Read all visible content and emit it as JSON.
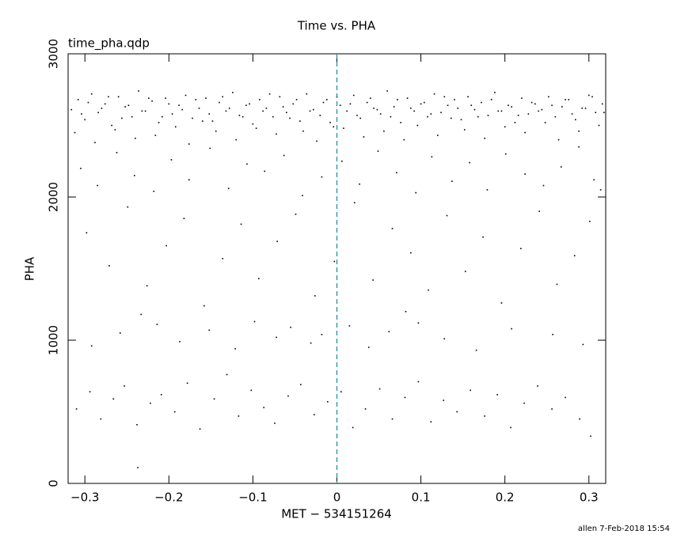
{
  "chart_data": {
    "type": "scatter",
    "title": "Time vs. PHA",
    "subtitle": "time_pha.qdp",
    "x_label": "MET − 534151264",
    "y_label": "PHA",
    "footer": "allen  7-Feb-2018 15:54",
    "color": "#000000",
    "vline": 0,
    "vline_color": "#2a8fa0",
    "xlim": [
      -0.32,
      0.32
    ],
    "ylim": [
      0,
      3000
    ],
    "xticks": [
      {
        "value": -0.3,
        "label": "−0.3"
      },
      {
        "value": -0.2,
        "label": "−0.2"
      },
      {
        "value": -0.1,
        "label": "−0.1"
      },
      0,
      0.1,
      0.2,
      0.3
    ],
    "yticks": [
      0,
      1000,
      2000,
      3000
    ],
    "x": [
      -0.316,
      -0.308,
      -0.3,
      -0.292,
      -0.284,
      -0.276,
      -0.268,
      -0.26,
      -0.252,
      -0.244,
      -0.236,
      -0.228,
      -0.22,
      -0.212,
      -0.204,
      -0.196,
      -0.188,
      -0.18,
      -0.172,
      -0.164,
      -0.156,
      -0.148,
      -0.14,
      -0.132,
      -0.124,
      -0.116,
      -0.108,
      -0.1,
      -0.092,
      -0.084,
      -0.076,
      -0.068,
      -0.06,
      -0.052,
      -0.044,
      -0.036,
      -0.028,
      -0.02,
      -0.012,
      -0.004,
      0.004,
      0.012,
      0.02,
      0.028,
      0.036,
      0.044,
      0.052,
      0.06,
      0.068,
      0.076,
      0.084,
      0.092,
      0.1,
      0.108,
      0.116,
      0.124,
      0.132,
      0.14,
      0.148,
      0.156,
      0.164,
      0.172,
      0.18,
      0.188,
      0.196,
      0.204,
      0.212,
      0.22,
      0.228,
      0.236,
      0.244,
      0.252,
      0.26,
      0.268,
      0.276,
      0.284,
      0.292,
      0.3,
      0.308,
      0.316,
      -0.312,
      -0.304,
      -0.296,
      -0.288,
      -0.28,
      -0.272,
      -0.264,
      -0.256,
      -0.248,
      -0.24,
      -0.232,
      -0.224,
      -0.216,
      -0.208,
      -0.2,
      -0.192,
      -0.184,
      -0.176,
      -0.168,
      -0.16,
      -0.152,
      -0.144,
      -0.136,
      -0.128,
      -0.12,
      -0.112,
      -0.104,
      -0.096,
      -0.088,
      -0.08,
      -0.072,
      -0.064,
      -0.056,
      -0.048,
      -0.04,
      -0.032,
      -0.024,
      -0.016,
      -0.008,
      0.0,
      0.008,
      0.016,
      0.024,
      0.032,
      0.04,
      0.048,
      0.056,
      0.064,
      0.072,
      0.08,
      0.088,
      0.096,
      0.104,
      0.112,
      0.12,
      0.128,
      0.136,
      0.144,
      0.152,
      0.16,
      0.168,
      0.176,
      0.184,
      0.192,
      0.2,
      0.208,
      0.216,
      0.224,
      0.232,
      0.24,
      0.248,
      0.256,
      0.264,
      0.272,
      0.28,
      0.288,
      0.296,
      0.304,
      0.312,
      0.318,
      -0.305,
      -0.285,
      -0.262,
      -0.241,
      -0.218,
      -0.197,
      -0.176,
      -0.151,
      -0.129,
      -0.107,
      -0.086,
      -0.063,
      -0.041,
      -0.018,
      0.006,
      0.027,
      0.049,
      0.071,
      0.094,
      0.113,
      0.137,
      0.158,
      0.179,
      0.201,
      0.224,
      0.246,
      0.267,
      0.288,
      0.306,
      0.314,
      -0.298,
      -0.271,
      -0.249,
      -0.226,
      -0.203,
      -0.182,
      -0.158,
      -0.136,
      -0.114,
      -0.093,
      -0.071,
      -0.049,
      -0.026,
      -0.003,
      0.021,
      0.043,
      0.066,
      0.088,
      0.109,
      0.131,
      0.153,
      0.174,
      0.196,
      0.219,
      0.241,
      0.262,
      0.283,
      0.301,
      -0.233,
      0.082,
      -0.292,
      -0.258,
      -0.214,
      -0.187,
      -0.152,
      -0.121,
      -0.098,
      -0.072,
      -0.055,
      -0.031,
      -0.018,
      0.015,
      0.038,
      0.062,
      0.097,
      0.128,
      0.166,
      0.208,
      0.257,
      0.293,
      -0.31,
      -0.294,
      -0.281,
      -0.266,
      -0.253,
      -0.238,
      -0.222,
      -0.209,
      -0.193,
      -0.178,
      -0.163,
      -0.146,
      -0.131,
      -0.117,
      -0.102,
      -0.087,
      -0.074,
      -0.058,
      -0.043,
      -0.027,
      -0.011,
      0.005,
      0.019,
      0.034,
      0.051,
      0.066,
      0.081,
      0.097,
      0.112,
      0.127,
      0.143,
      0.159,
      0.176,
      0.191,
      0.207,
      0.223,
      0.239,
      0.256,
      0.272,
      0.289,
      -0.237,
      0.302
    ],
    "values": [
      2610,
      2680,
      2540,
      2720,
      2590,
      2650,
      2500,
      2700,
      2630,
      2560,
      2740,
      2600,
      2670,
      2520,
      2690,
      2580,
      2640,
      2710,
      2550,
      2620,
      2690,
      2530,
      2660,
      2600,
      2730,
      2570,
      2640,
      2510,
      2680,
      2620,
      2560,
      2700,
      2590,
      2650,
      2530,
      2720,
      2610,
      2570,
      2680,
      2490,
      2640,
      2600,
      2710,
      2550,
      2660,
      2620,
      2580,
      2740,
      2630,
      2520,
      2690,
      2600,
      2650,
      2560,
      2720,
      2590,
      2640,
      2680,
      2540,
      2700,
      2610,
      2660,
      2570,
      2730,
      2600,
      2640,
      2520,
      2690,
      2580,
      2650,
      2610,
      2700,
      2560,
      2630,
      2680,
      2540,
      2620,
      2710,
      2590,
      2650,
      2450,
      2580,
      2660,
      2380,
      2620,
      2700,
      2470,
      2550,
      2640,
      2410,
      2600,
      2690,
      2430,
      2560,
      2650,
      2490,
      2610,
      2370,
      2680,
      2530,
      2580,
      2460,
      2700,
      2620,
      2400,
      2560,
      2650,
      2480,
      2600,
      2720,
      2440,
      2630,
      2550,
      2680,
      2460,
      2600,
      2390,
      2660,
      2520,
      2700,
      2480,
      2650,
      2570,
      2420,
      2690,
      2610,
      2460,
      2560,
      2680,
      2400,
      2620,
      2500,
      2660,
      2580,
      2430,
      2700,
      2550,
      2620,
      2470,
      2640,
      2560,
      2410,
      2680,
      2600,
      2490,
      2630,
      2570,
      2450,
      2660,
      2600,
      2520,
      2640,
      2400,
      2680,
      2580,
      2460,
      2620,
      2700,
      2500,
      2590,
      2200,
      2080,
      2310,
      2150,
      2040,
      2260,
      2120,
      2340,
      2060,
      2230,
      2180,
      2290,
      2010,
      2140,
      2250,
      2090,
      2320,
      2170,
      2030,
      2280,
      2110,
      2240,
      2050,
      2300,
      2160,
      2080,
      2210,
      2350,
      2120,
      2050,
      1750,
      1520,
      1930,
      1380,
      1660,
      1850,
      1240,
      1570,
      1810,
      1430,
      1690,
      1880,
      1310,
      1550,
      1960,
      1420,
      1780,
      1610,
      1350,
      1870,
      1480,
      1720,
      1260,
      1640,
      1900,
      1390,
      1590,
      1830,
      1180,
      1200,
      960,
      1050,
      1110,
      990,
      1070,
      940,
      1130,
      1020,
      1090,
      980,
      1040,
      1100,
      950,
      1060,
      1120,
      1010,
      930,
      1080,
      1040,
      970,
      520,
      640,
      450,
      590,
      680,
      410,
      560,
      620,
      500,
      700,
      380,
      590,
      760,
      470,
      650,
      530,
      420,
      610,
      690,
      480,
      570,
      640,
      390,
      520,
      660,
      450,
      600,
      710,
      430,
      580,
      500,
      650,
      470,
      620,
      390,
      560,
      680,
      520,
      600,
      450,
      110,
      330
    ]
  }
}
